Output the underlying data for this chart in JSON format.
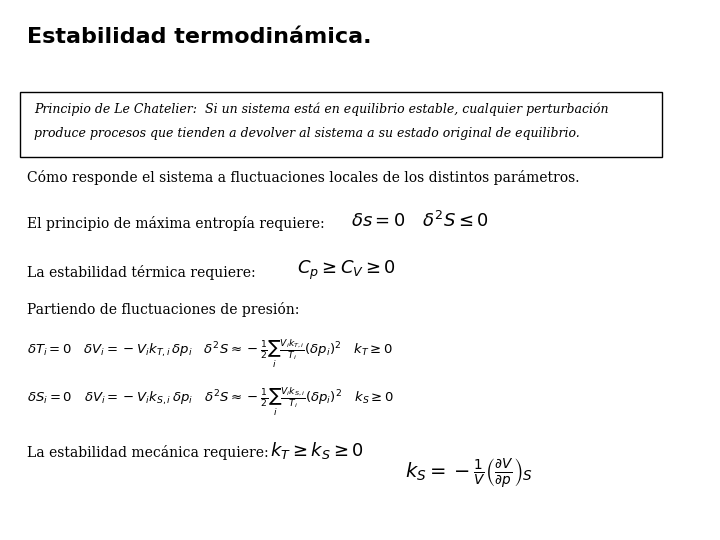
{
  "title": "Estabilidad termodinámica.",
  "box_text_line1": "Principio de Le Chatelier:  Si un sistema está en equilibrio estable, cualquier perturbación",
  "box_text_line2": "produce procesos que tienden a devolver al sistema a su estado original de equilibrio.",
  "line1": "Cómo responde el sistema a fluctuaciones locales de los distintos parámetros.",
  "line2_label": "El principio de máxima entropía requiere:",
  "line2_formula": "$\\delta s = 0 \\quad \\delta^2 S \\leq 0$",
  "line3_label": "La estabilidad térmica requiere:",
  "line3_formula": "$C_p \\geq C_V \\geq 0$",
  "line4_label": "Partiendo de fluctuaciones de presión:",
  "line5a_formula": "$\\delta T_i = 0 \\quad \\delta V_i = -V_i k_{T,i}\\, \\delta p_i \\quad \\delta^2 S \\approx -\\frac{1}{2}\\sum_i \\frac{V_i k_{T,i}}{T_i}\\left(\\delta p_i\\right)^2 k_T \\geq 0$",
  "line5b_formula": "$\\delta S_i = 0 \\quad \\delta V_i = -V_i k_{S,i}\\, \\delta p_i \\quad \\delta^2 S \\approx -\\frac{1}{2}\\sum_i \\frac{V_i k_{S,i}}{T_i}\\left(\\delta p_i\\right)^2 k_S \\geq 0$",
  "line6_label": "La estabilidad mecánica requiere:",
  "line6_formula": "$k_T \\geq k_S \\geq 0$",
  "line6_formula2": "$k_S = -\\frac{1}{V}\\left(\\frac{\\partial V}{\\partial p}\\right)_S$",
  "bg_color": "#ffffff",
  "text_color": "#000000",
  "title_fontsize": 16,
  "body_fontsize": 10,
  "formula_fontsize": 12
}
